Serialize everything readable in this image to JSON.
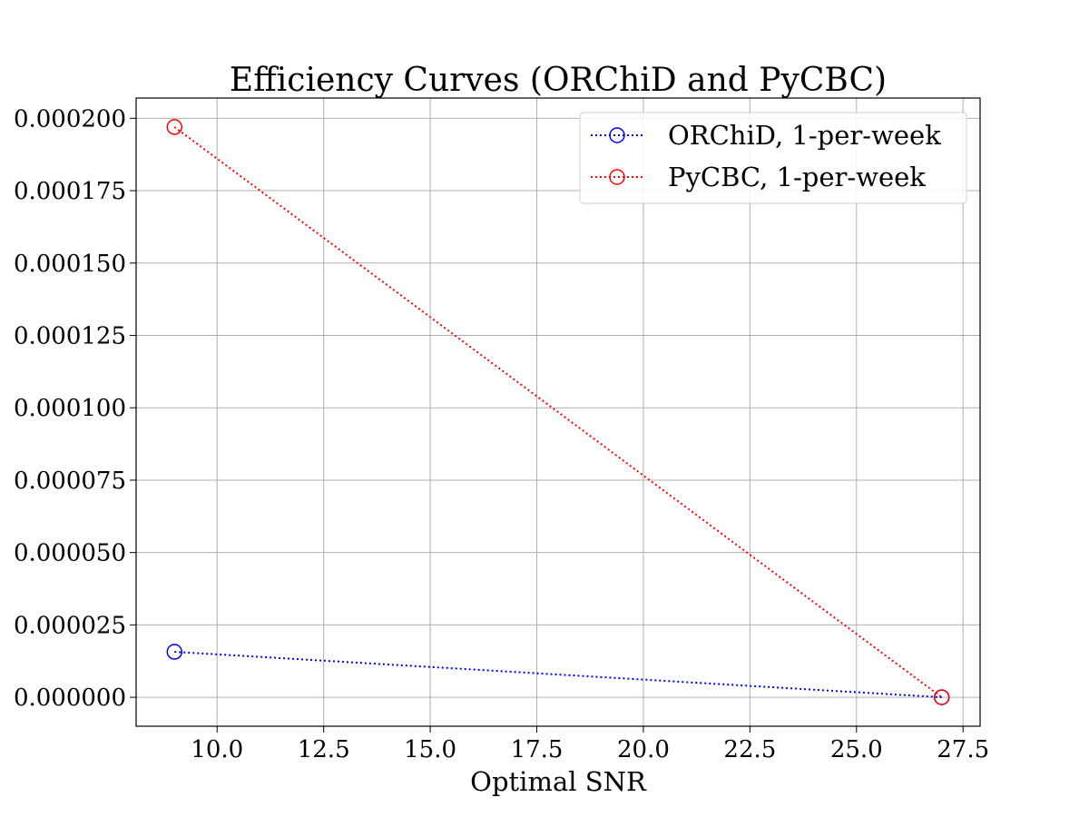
{
  "chart_data": {
    "type": "line",
    "title": "Efficiency Curves (ORChiD and PyCBC)",
    "xlabel": "Optimal SNR",
    "ylabel": "",
    "xlim": [
      8.1,
      27.9
    ],
    "ylim": [
      -1e-05,
      0.000207
    ],
    "xticks": [
      10.0,
      12.5,
      15.0,
      17.5,
      20.0,
      22.5,
      25.0,
      27.5
    ],
    "xtick_labels": [
      "10.0",
      "12.5",
      "15.0",
      "17.5",
      "20.0",
      "22.5",
      "25.0",
      "27.5"
    ],
    "yticks": [
      0.0,
      2.5e-05,
      5e-05,
      7.5e-05,
      0.0001,
      0.000125,
      0.00015,
      0.000175,
      0.0002
    ],
    "ytick_labels": [
      "0.000000",
      "0.000025",
      "0.000050",
      "0.000075",
      "0.000100",
      "0.000125",
      "0.000150",
      "0.000175",
      "0.000200"
    ],
    "grid": true,
    "legend_position": "top-right",
    "series": [
      {
        "name": "ORChiD, 1-per-week",
        "color": "#0000ff",
        "line_style": "dotted",
        "marker": "open-circle",
        "x": [
          9.0,
          27.0
        ],
        "y": [
          1.57e-05,
          0.0
        ]
      },
      {
        "name": "PyCBC, 1-per-week",
        "color": "#ff0000",
        "line_style": "dotted",
        "marker": "open-circle",
        "x": [
          9.0,
          27.0
        ],
        "y": [
          0.000197,
          0.0
        ]
      }
    ]
  }
}
